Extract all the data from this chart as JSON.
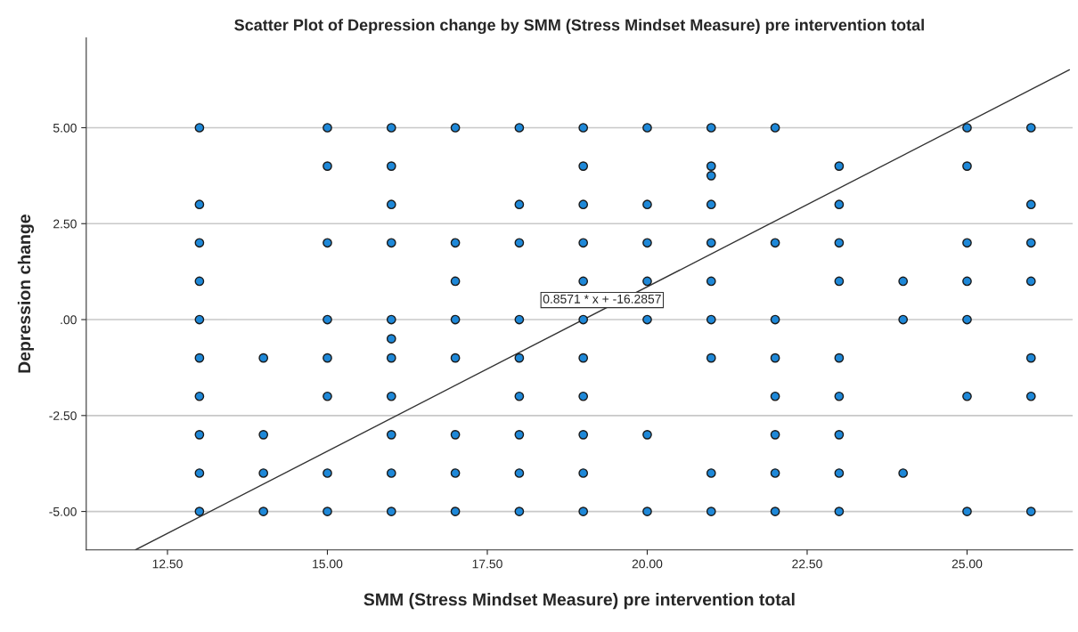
{
  "chart_data": {
    "type": "scatter",
    "title": "Scatter Plot of Depression change by SMM (Stress Mindset Measure) pre intervention total",
    "xlabel": "SMM (Stress Mindset Measure) pre intervention total",
    "ylabel": "Depression change",
    "series": [
      {
        "color": "#1e88d8",
        "marker": "circle",
        "x": [
          13,
          13,
          13,
          13,
          13,
          13,
          13,
          13,
          13,
          13,
          14,
          14,
          14,
          14,
          15,
          15,
          15,
          15,
          15,
          15,
          15,
          15,
          16,
          16,
          16,
          16,
          16,
          16,
          16,
          16,
          16,
          16,
          16,
          17,
          17,
          17,
          17,
          17,
          17,
          17,
          17,
          18,
          18,
          18,
          18,
          18,
          18,
          18,
          18,
          18,
          19,
          19,
          19,
          19,
          19,
          19,
          19,
          19,
          19,
          19,
          19,
          20,
          20,
          20,
          20,
          20,
          20,
          20,
          21,
          21,
          21,
          21,
          21,
          21,
          21,
          21,
          21,
          21,
          22,
          22,
          22,
          22,
          22,
          22,
          22,
          22,
          23,
          23,
          23,
          23,
          23,
          23,
          23,
          23,
          23,
          24,
          24,
          24,
          25,
          25,
          25,
          25,
          25,
          25,
          25,
          26,
          26,
          26,
          26,
          26,
          26,
          26
        ],
        "values": [
          5,
          3,
          2,
          1,
          0,
          -1,
          -2,
          -3,
          -4,
          -5,
          -1,
          -3,
          -4,
          -5,
          5,
          4,
          2,
          0,
          -1,
          -2,
          -4,
          -5,
          5,
          4,
          3,
          2,
          0,
          -0.5,
          -1,
          -2,
          -3,
          -4,
          -5,
          5,
          2,
          1,
          0,
          -1,
          -3,
          -4,
          -5,
          5,
          3,
          2,
          0,
          -1,
          -2,
          -3,
          -4,
          -5,
          5,
          4,
          3,
          2,
          1,
          0,
          -1,
          -2,
          -3,
          -4,
          -5,
          5,
          3,
          2,
          1,
          0,
          -3,
          -5,
          5,
          4,
          3.75,
          3,
          2,
          1,
          0,
          -1,
          -4,
          -5,
          5,
          2,
          0,
          -1,
          -2,
          -3,
          -4,
          -5,
          4,
          3,
          2,
          1,
          -1,
          -2,
          -3,
          -4,
          -5,
          1,
          0,
          -4,
          5,
          4,
          2,
          1,
          0,
          -2,
          -5,
          5,
          3,
          2,
          1,
          -1,
          -2,
          -5
        ]
      },
      {
        "type": "line",
        "color": "#333333",
        "x": [
          12.0,
          26.6
        ],
        "values": [
          -6.0,
          6.51
        ]
      }
    ],
    "annotations": [
      "0.8571 * x + -16.2857"
    ],
    "xlim": [
      11.23,
      26.65
    ],
    "ylim": [
      -6.0,
      7.34
    ],
    "xticks": [
      {
        "value": 12.5,
        "label": "12.50"
      },
      {
        "value": 15,
        "label": "15.00"
      },
      {
        "value": 17.5,
        "label": "17.50"
      },
      {
        "value": 20,
        "label": "20.00"
      },
      {
        "value": 22.5,
        "label": "22.50"
      },
      {
        "value": 25,
        "label": "25.00"
      }
    ],
    "yticks": [
      {
        "value": -5,
        "label": "-5.00"
      },
      {
        "value": -2.5,
        "label": "-2.50"
      },
      {
        "value": 0,
        "label": ".00"
      },
      {
        "value": 2.5,
        "label": "2.50"
      },
      {
        "value": 5,
        "label": "5.00"
      }
    ],
    "grid": "y"
  }
}
